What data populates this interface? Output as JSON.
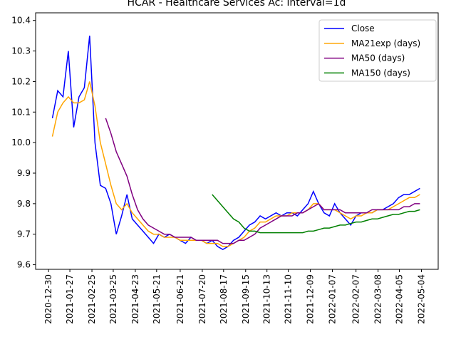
{
  "chart_data": {
    "type": "line",
    "title": "HCAR - Healthcare Services Ac: interval=1d",
    "x": [
      "2021-01-04",
      "2021-01-11",
      "2021-01-18",
      "2021-01-25",
      "2021-02-01",
      "2021-02-08",
      "2021-02-15",
      "2021-02-22",
      "2021-03-01",
      "2021-03-08",
      "2021-03-15",
      "2021-03-22",
      "2021-03-29",
      "2021-04-05",
      "2021-04-12",
      "2021-04-19",
      "2021-04-26",
      "2021-05-03",
      "2021-05-10",
      "2021-05-17",
      "2021-05-24",
      "2021-05-31",
      "2021-06-07",
      "2021-06-14",
      "2021-06-21",
      "2021-06-28",
      "2021-07-05",
      "2021-07-12",
      "2021-07-19",
      "2021-07-26",
      "2021-08-02",
      "2021-08-09",
      "2021-08-16",
      "2021-08-23",
      "2021-08-30",
      "2021-09-06",
      "2021-09-13",
      "2021-09-20",
      "2021-09-27",
      "2021-10-04",
      "2021-10-11",
      "2021-10-18",
      "2021-10-25",
      "2021-11-01",
      "2021-11-08",
      "2021-11-15",
      "2021-11-22",
      "2021-11-29",
      "2021-12-06",
      "2021-12-13",
      "2021-12-20",
      "2021-12-27",
      "2022-01-03",
      "2022-01-10",
      "2022-01-17",
      "2022-01-24",
      "2022-01-31",
      "2022-02-07",
      "2022-02-14",
      "2022-02-21",
      "2022-02-28",
      "2022-03-07",
      "2022-03-14",
      "2022-03-21",
      "2022-03-28",
      "2022-04-04",
      "2022-04-11",
      "2022-04-18",
      "2022-04-25",
      "2022-05-02"
    ],
    "series": [
      {
        "name": "Close",
        "color": "#0000ff",
        "values": [
          10.08,
          10.17,
          10.15,
          10.3,
          10.05,
          10.15,
          10.18,
          10.35,
          10.0,
          9.86,
          9.85,
          9.8,
          9.7,
          9.76,
          9.83,
          9.75,
          9.73,
          9.71,
          9.69,
          9.67,
          9.7,
          9.69,
          9.7,
          9.69,
          9.68,
          9.67,
          9.69,
          9.68,
          9.68,
          9.67,
          9.68,
          9.66,
          9.65,
          9.66,
          9.68,
          9.69,
          9.71,
          9.73,
          9.74,
          9.76,
          9.75,
          9.76,
          9.77,
          9.76,
          9.77,
          9.77,
          9.76,
          9.78,
          9.8,
          9.84,
          9.8,
          9.77,
          9.76,
          9.8,
          9.77,
          9.75,
          9.73,
          9.76,
          9.77,
          9.77,
          9.77,
          9.78,
          9.78,
          9.79,
          9.8,
          9.82,
          9.83,
          9.83,
          9.84,
          9.85
        ]
      },
      {
        "name": "MA21exp (days)",
        "color": "#ffa500",
        "values": [
          10.02,
          10.1,
          10.13,
          10.15,
          10.13,
          10.13,
          10.14,
          10.2,
          10.12,
          10.0,
          9.93,
          9.86,
          9.8,
          9.78,
          9.8,
          9.77,
          9.75,
          9.73,
          9.71,
          9.7,
          9.7,
          9.69,
          9.69,
          9.69,
          9.68,
          9.68,
          9.68,
          9.68,
          9.68,
          9.67,
          9.67,
          9.67,
          9.66,
          9.66,
          9.67,
          9.68,
          9.69,
          9.71,
          9.72,
          9.74,
          9.74,
          9.75,
          9.76,
          9.76,
          9.76,
          9.77,
          9.77,
          9.77,
          9.78,
          9.8,
          9.8,
          9.78,
          9.78,
          9.78,
          9.77,
          9.76,
          9.75,
          9.76,
          9.76,
          9.77,
          9.77,
          9.78,
          9.78,
          9.78,
          9.79,
          9.8,
          9.81,
          9.82,
          9.82,
          9.83
        ]
      },
      {
        "name": "MA50 (days)",
        "color": "#800080",
        "values": [
          null,
          null,
          null,
          null,
          null,
          null,
          null,
          null,
          null,
          null,
          10.08,
          10.03,
          9.97,
          9.93,
          9.89,
          9.83,
          9.78,
          9.75,
          9.73,
          9.72,
          9.71,
          9.7,
          9.7,
          9.69,
          9.69,
          9.69,
          9.69,
          9.68,
          9.68,
          9.68,
          9.68,
          9.68,
          9.67,
          9.67,
          9.67,
          9.68,
          9.68,
          9.69,
          9.7,
          9.72,
          9.73,
          9.74,
          9.75,
          9.76,
          9.76,
          9.76,
          9.77,
          9.77,
          9.78,
          9.79,
          9.8,
          9.78,
          9.78,
          9.78,
          9.78,
          9.77,
          9.77,
          9.77,
          9.77,
          9.77,
          9.78,
          9.78,
          9.78,
          9.78,
          9.78,
          9.78,
          9.79,
          9.79,
          9.8,
          9.8
        ]
      },
      {
        "name": "MA150 (days)",
        "color": "#008000",
        "values": [
          null,
          null,
          null,
          null,
          null,
          null,
          null,
          null,
          null,
          null,
          null,
          null,
          null,
          null,
          null,
          null,
          null,
          null,
          null,
          null,
          null,
          null,
          null,
          null,
          null,
          null,
          null,
          null,
          null,
          null,
          9.83,
          9.81,
          9.79,
          9.77,
          9.75,
          9.74,
          9.72,
          9.71,
          9.71,
          9.705,
          9.705,
          9.705,
          9.705,
          9.705,
          9.705,
          9.705,
          9.705,
          9.705,
          9.71,
          9.71,
          9.715,
          9.72,
          9.72,
          9.725,
          9.73,
          9.73,
          9.735,
          9.74,
          9.74,
          9.745,
          9.75,
          9.75,
          9.755,
          9.76,
          9.765,
          9.765,
          9.77,
          9.775,
          9.775,
          9.78
        ]
      }
    ],
    "xlim": [
      "2020-12-13",
      "2022-05-26"
    ],
    "xticks": [
      "2020-12-30",
      "2021-01-27",
      "2021-02-25",
      "2021-03-25",
      "2021-04-23",
      "2021-05-21",
      "2021-06-21",
      "2021-07-20",
      "2021-08-17",
      "2021-09-15",
      "2021-10-13",
      "2021-11-10",
      "2021-12-09",
      "2022-01-07",
      "2022-02-07",
      "2022-03-08",
      "2022-04-05",
      "2022-05-04"
    ],
    "ylim": [
      9.585,
      10.425
    ],
    "yticks": [
      9.6,
      9.7,
      9.8,
      9.9,
      {
        "value": 10,
        "label": "10.0"
      },
      10.1,
      10.2,
      10.3,
      10.4
    ],
    "legend": "upper right"
  }
}
